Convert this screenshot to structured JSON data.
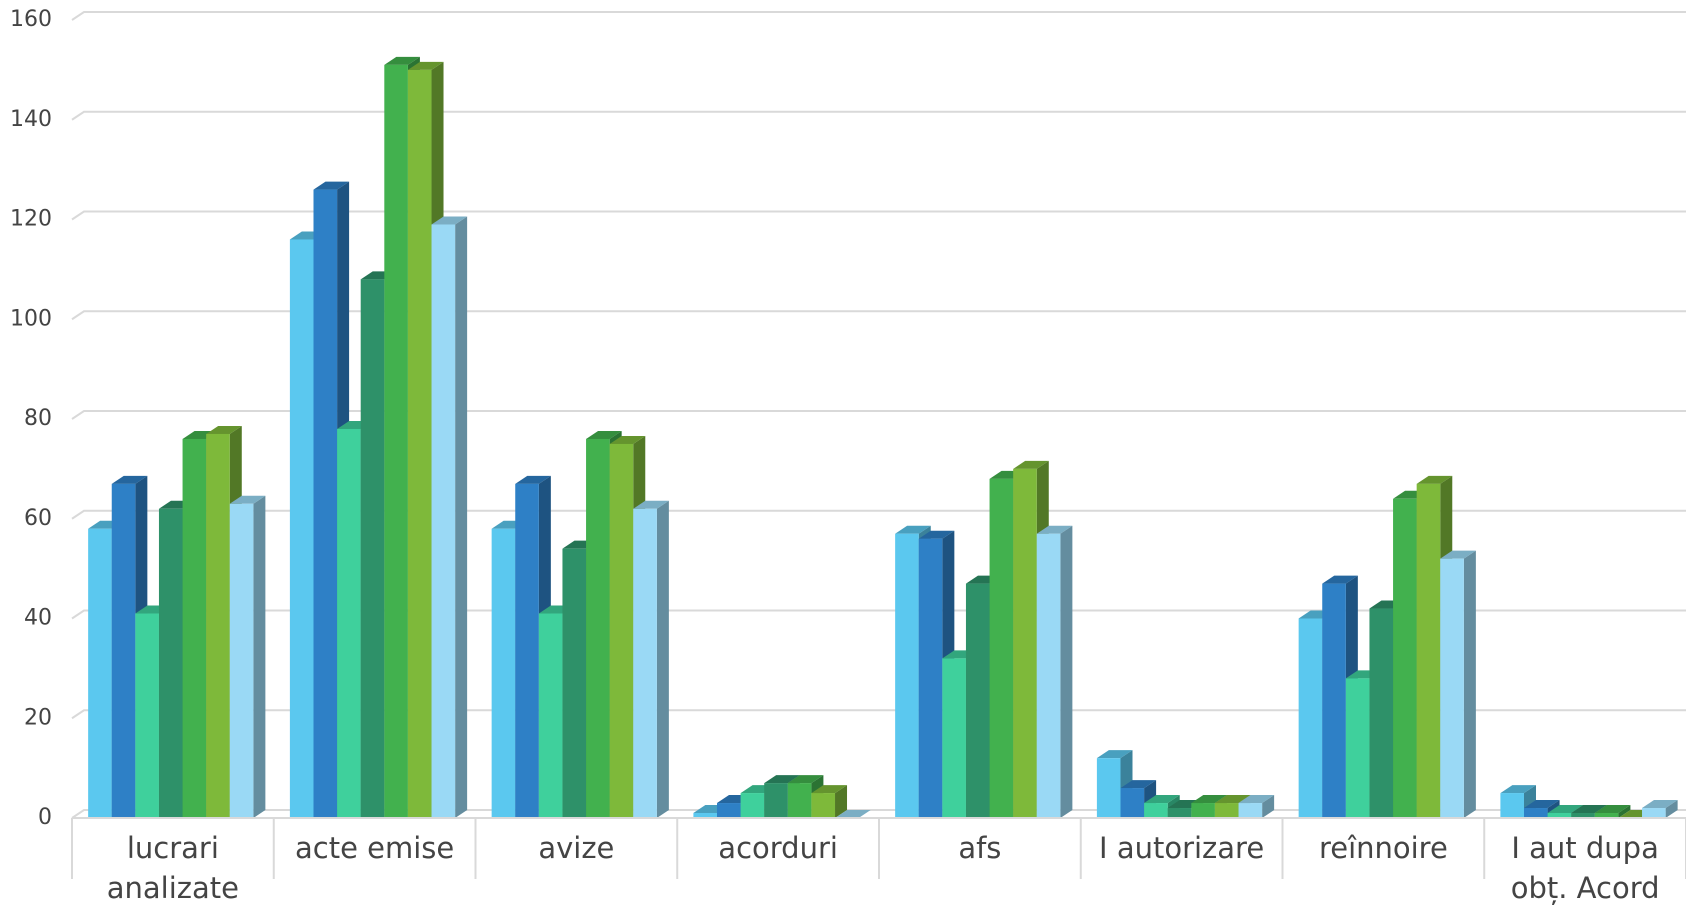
{
  "chart_data": {
    "type": "bar3d",
    "categories": [
      "lucrari analizate",
      "acte emise",
      "avize",
      "acorduri",
      "afs",
      "I autorizare",
      "reînnoire",
      "I aut dupa obț. Acord"
    ],
    "series": [
      {
        "color": "#5bc8ef",
        "values": [
          58,
          116,
          58,
          1,
          57,
          12,
          40,
          5
        ]
      },
      {
        "color": "#2e80c6",
        "values": [
          67,
          126,
          67,
          3,
          56,
          6,
          47,
          2
        ]
      },
      {
        "color": "#3fd09c",
        "values": [
          41,
          78,
          41,
          5,
          32,
          3,
          28,
          1
        ]
      },
      {
        "color": "#2e9169",
        "values": [
          62,
          108,
          54,
          7,
          47,
          2,
          42,
          1
        ]
      },
      {
        "color": "#42b14e",
        "values": [
          76,
          151,
          76,
          7,
          68,
          3,
          64,
          1
        ]
      },
      {
        "color": "#7eb93a",
        "values": [
          77,
          150,
          75,
          5,
          70,
          3,
          67,
          0
        ]
      },
      {
        "color": "#9ad9f5",
        "values": [
          63,
          119,
          62,
          0,
          57,
          3,
          52,
          2
        ]
      }
    ],
    "ylim": [
      0,
      160
    ],
    "yticks": [
      0,
      20,
      40,
      60,
      80,
      100,
      120,
      140,
      160
    ],
    "grid": true
  }
}
